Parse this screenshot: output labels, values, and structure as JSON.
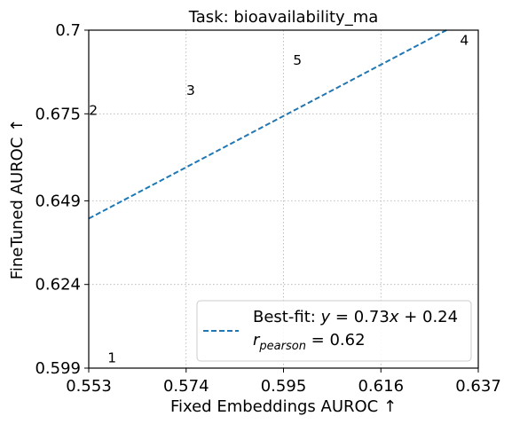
{
  "chart_data": {
    "type": "scatter",
    "title": "Task: bioavailability_ma",
    "xlabel": "Fixed Embeddings AUROC ↑",
    "ylabel": "FineTuned AUROC ↑",
    "xlim": [
      0.553,
      0.637
    ],
    "ylim": [
      0.599,
      0.7
    ],
    "xticks": [
      "0.553",
      "0.574",
      "0.595",
      "0.616",
      "0.637"
    ],
    "yticks": [
      "0.599",
      "0.624",
      "0.649",
      "0.675",
      "0.7"
    ],
    "grid": true,
    "points": [
      {
        "label": "1",
        "x": 0.558,
        "y": 0.602
      },
      {
        "label": "2",
        "x": 0.554,
        "y": 0.676
      },
      {
        "label": "3",
        "x": 0.575,
        "y": 0.682
      },
      {
        "label": "4",
        "x": 0.634,
        "y": 0.697
      },
      {
        "label": "5",
        "x": 0.598,
        "y": 0.691
      }
    ],
    "fit": {
      "slope": 0.73,
      "intercept": 0.24,
      "color": "#1f77b4",
      "style": "dashed"
    },
    "legend": {
      "placement": "lower right",
      "fit_label": "Best-fit: y = 0.73x + 0.24",
      "pearson_label": "r_pearson = 0.62"
    }
  }
}
